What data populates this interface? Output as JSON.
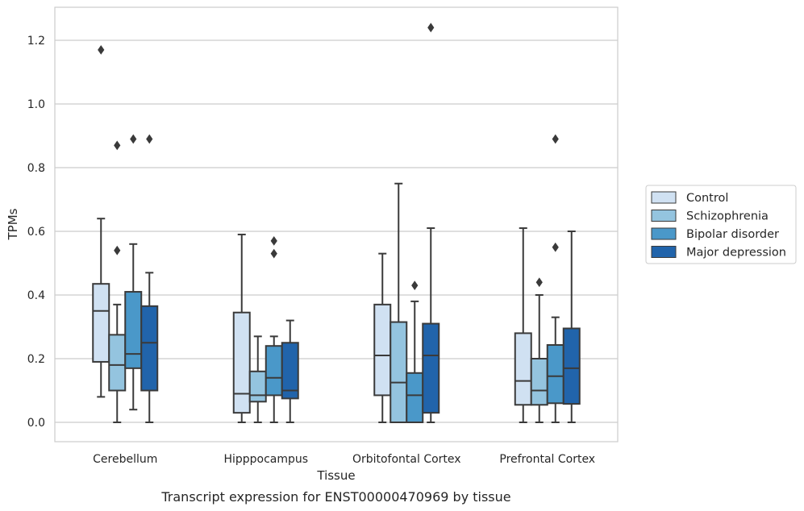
{
  "chart_data": {
    "type": "box",
    "xlabel": "Tissue",
    "ylabel": "TPMs",
    "caption": "Transcript expression for ENST00000470969 by tissue",
    "ylim": [
      -0.06,
      1.3
    ],
    "yticks": [
      "0.0",
      "0.2",
      "0.4",
      "0.6",
      "0.8",
      "1.0",
      "1.2"
    ],
    "grid": true,
    "legend_position": "right",
    "categories": [
      "Cerebellum",
      "Hipppocampus",
      "Orbitofontal Cortex",
      "Prefrontal Cortex"
    ],
    "series": [
      {
        "name": "Control",
        "color": "#d0e1f2",
        "boxes": [
          {
            "whislo": 0.08,
            "q1": 0.19,
            "med": 0.35,
            "q3": 0.435,
            "whishi": 0.64,
            "fliers": [
              1.17
            ]
          },
          {
            "whislo": 0.0,
            "q1": 0.03,
            "med": 0.09,
            "q3": 0.345,
            "whishi": 0.59,
            "fliers": []
          },
          {
            "whislo": 0.0,
            "q1": 0.085,
            "med": 0.21,
            "q3": 0.37,
            "whishi": 0.53,
            "fliers": []
          },
          {
            "whislo": 0.0,
            "q1": 0.055,
            "med": 0.13,
            "q3": 0.28,
            "whishi": 0.61,
            "fliers": []
          }
        ]
      },
      {
        "name": "Schizophrenia",
        "color": "#94c4df",
        "boxes": [
          {
            "whislo": 0.0,
            "q1": 0.1,
            "med": 0.18,
            "q3": 0.275,
            "whishi": 0.37,
            "fliers": [
              0.54,
              0.87
            ]
          },
          {
            "whislo": 0.0,
            "q1": 0.065,
            "med": 0.085,
            "q3": 0.16,
            "whishi": 0.27,
            "fliers": []
          },
          {
            "whislo": 0.0,
            "q1": 0.0,
            "med": 0.125,
            "q3": 0.315,
            "whishi": 0.75,
            "fliers": []
          },
          {
            "whislo": 0.0,
            "q1": 0.055,
            "med": 0.1,
            "q3": 0.2,
            "whishi": 0.4,
            "fliers": [
              0.44
            ]
          }
        ]
      },
      {
        "name": "Bipolar disorder",
        "color": "#4a98c9",
        "boxes": [
          {
            "whislo": 0.04,
            "q1": 0.17,
            "med": 0.215,
            "q3": 0.41,
            "whishi": 0.56,
            "fliers": [
              0.89
            ]
          },
          {
            "whislo": 0.0,
            "q1": 0.085,
            "med": 0.14,
            "q3": 0.24,
            "whishi": 0.27,
            "fliers": [
              0.53,
              0.57
            ]
          },
          {
            "whislo": 0.0,
            "q1": 0.0,
            "med": 0.085,
            "q3": 0.155,
            "whishi": 0.38,
            "fliers": [
              0.43
            ]
          },
          {
            "whislo": 0.0,
            "q1": 0.06,
            "med": 0.145,
            "q3": 0.243,
            "whishi": 0.33,
            "fliers": [
              0.55,
              0.89
            ]
          }
        ]
      },
      {
        "name": "Major depression",
        "color": "#2164ab",
        "boxes": [
          {
            "whislo": 0.0,
            "q1": 0.1,
            "med": 0.25,
            "q3": 0.365,
            "whishi": 0.47,
            "fliers": [
              0.89
            ]
          },
          {
            "whislo": 0.0,
            "q1": 0.075,
            "med": 0.1,
            "q3": 0.25,
            "whishi": 0.32,
            "fliers": []
          },
          {
            "whislo": 0.0,
            "q1": 0.03,
            "med": 0.21,
            "q3": 0.31,
            "whishi": 0.61,
            "fliers": [
              1.24
            ]
          },
          {
            "whislo": 0.0,
            "q1": 0.058,
            "med": 0.17,
            "q3": 0.295,
            "whishi": 0.6,
            "fliers": []
          }
        ]
      }
    ]
  }
}
